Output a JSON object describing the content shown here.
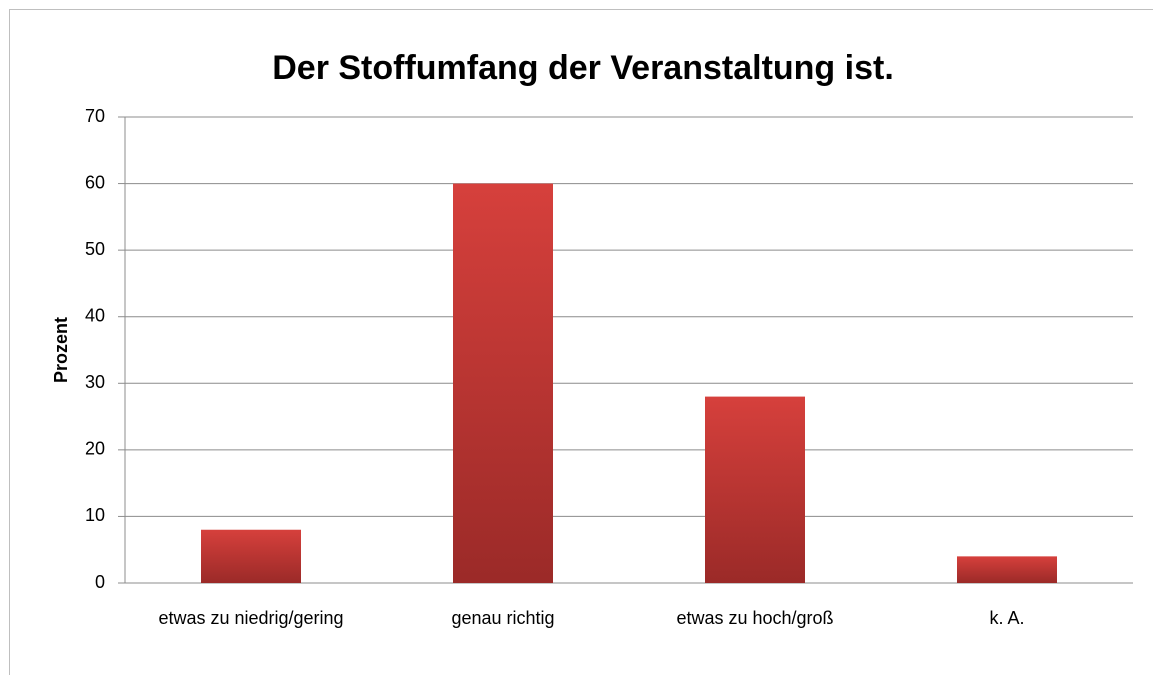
{
  "chart_data": {
    "type": "bar",
    "title": "Der Stoffumfang der Veranstaltung ist.",
    "y_label": "Prozent",
    "categories": [
      "etwas zu niedrig/gering",
      "genau richtig",
      "etwas zu hoch/groß",
      "k. A."
    ],
    "values": [
      8,
      60,
      28,
      4
    ],
    "color": "#c0392b",
    "ylim": [
      0,
      70
    ],
    "yticks": [
      0,
      10,
      20,
      30,
      40,
      50,
      60,
      70
    ],
    "grid": true
  }
}
